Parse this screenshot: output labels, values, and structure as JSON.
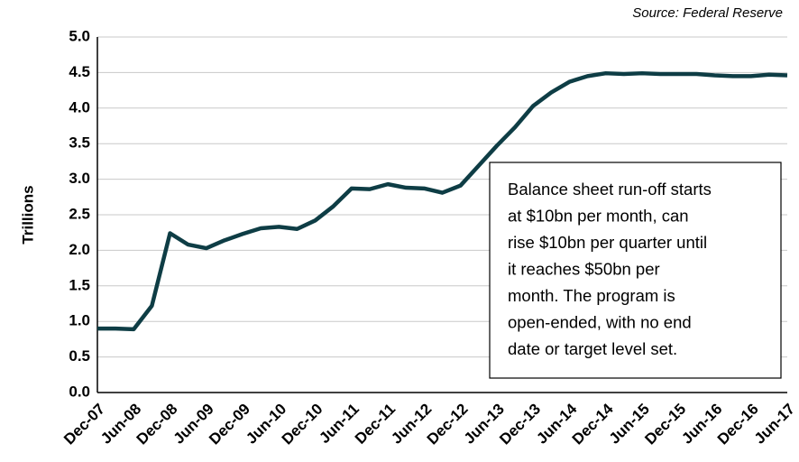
{
  "chart_data": {
    "type": "line",
    "source": "Source: Federal Reserve",
    "y_label": "Trillions",
    "annotation": [
      "Balance sheet run-off starts",
      "at $10bn per month, can",
      "rise $10bn per quarter until",
      "it reaches $50bn per",
      "month.  The program is",
      "open-ended, with no end",
      "date or target level set."
    ],
    "categories": [
      "Dec-07",
      null,
      "Jun-08",
      null,
      "Dec-08",
      null,
      "Jun-09",
      null,
      "Dec-09",
      null,
      "Jun-10",
      null,
      "Dec-10",
      null,
      "Jun-11",
      null,
      "Dec-11",
      null,
      "Jun-12",
      null,
      "Dec-12",
      null,
      "Jun-13",
      null,
      "Dec-13",
      null,
      "Jun-14",
      null,
      "Dec-14",
      null,
      "Jun-15",
      null,
      "Dec-15",
      null,
      "Jun-16",
      null,
      "Dec-16",
      null,
      "Jun-17"
    ],
    "series": [
      {
        "name": "Balance sheet",
        "color": "#0e3d45",
        "values": [
          0.9,
          0.9,
          0.89,
          1.22,
          2.24,
          2.08,
          2.03,
          2.14,
          2.23,
          2.31,
          2.33,
          2.3,
          2.42,
          2.62,
          2.87,
          2.86,
          2.93,
          2.88,
          2.87,
          2.81,
          2.91,
          3.19,
          3.47,
          3.73,
          4.03,
          4.22,
          4.37,
          4.45,
          4.49,
          4.48,
          4.49,
          4.48,
          4.48,
          4.48,
          4.46,
          4.45,
          4.45,
          4.47,
          4.46
        ]
      }
    ],
    "ylim": [
      0,
      5
    ],
    "yticks": [
      {
        "value": 0,
        "label": "0.0"
      },
      0.5,
      {
        "value": 1,
        "label": "1.0"
      },
      1.5,
      {
        "value": 2,
        "label": "2.0"
      },
      2.5,
      {
        "value": 3,
        "label": "3.0"
      },
      3.5,
      {
        "value": 4,
        "label": "4.0"
      },
      4.5,
      {
        "value": 5,
        "label": "5.0"
      }
    ],
    "grid": true
  }
}
